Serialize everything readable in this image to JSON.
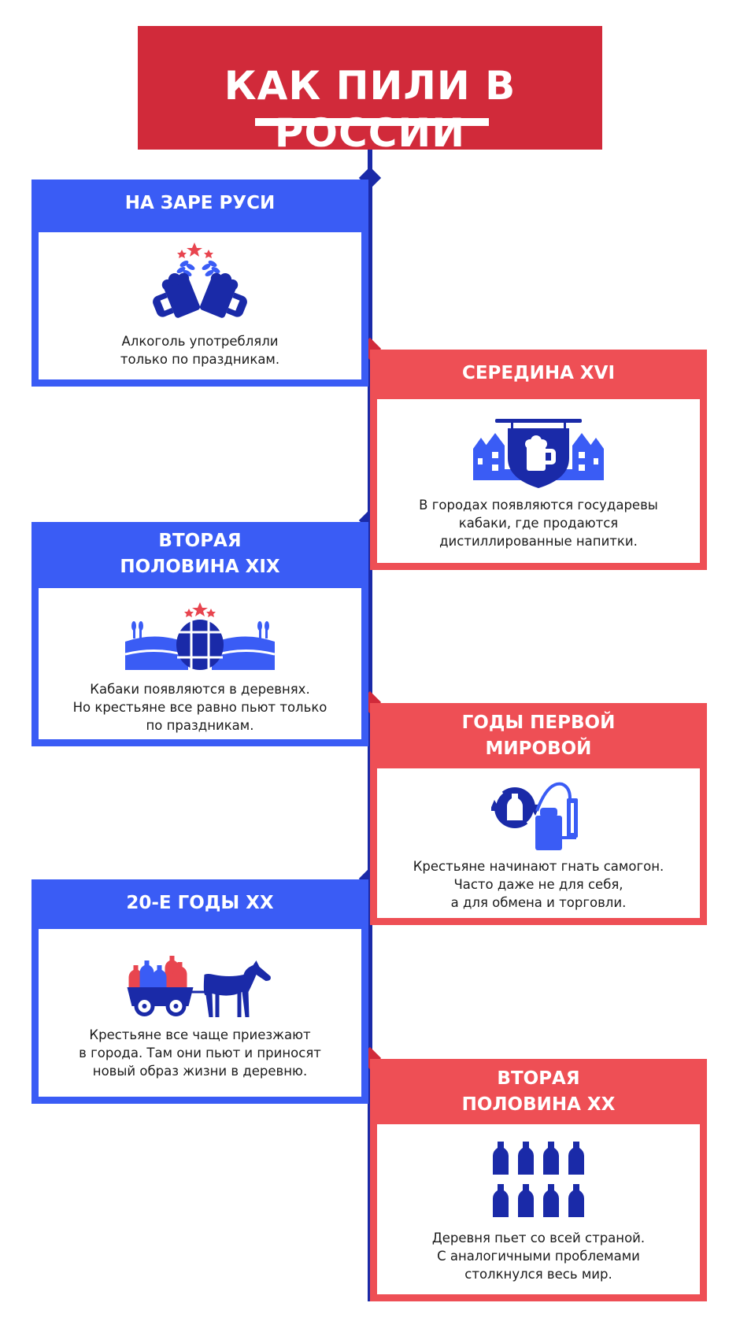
{
  "title": "КАК ПИЛИ В РОССИИ",
  "colors": {
    "red": "#d12a3a",
    "card_red": "#ee4f55",
    "blue": "#3a5cf5",
    "dark_blue": "#1a2aa8"
  },
  "cards": [
    {
      "heading": "НА ЗАРЕ РУСИ",
      "icon": "beer-mugs-icon",
      "lines": [
        "Алкоголь употребляли",
        "только по праздникам."
      ]
    },
    {
      "heading": "СЕРЕДИНА XVI",
      "icon": "tavern-sign-icon",
      "lines": [
        "В городах появляются государевы",
        "кабаки, где продаются",
        "дистиллированные напитки."
      ]
    },
    {
      "heading_lines": [
        "ВТОРАЯ",
        "ПОЛОВИНА XIX"
      ],
      "icon": "barrel-village-icon",
      "lines": [
        "Кабаки появляются в деревнях.",
        "Но крестьяне все равно пьют только",
        "по праздникам."
      ]
    },
    {
      "heading_lines": [
        "ГОДЫ ПЕРВОЙ",
        "МИРОВОЙ"
      ],
      "icon": "still-icon",
      "lines": [
        "Крестьяне начинают гнать самогон.",
        "Часто даже не для себя,",
        "а для обмена и торговли."
      ]
    },
    {
      "heading": "20-Е ГОДЫ XX",
      "icon": "horse-cart-icon",
      "lines": [
        "Крестьяне все чаще приезжают",
        "в города. Там они пьют и приносят",
        "новый образ жизни в деревню."
      ]
    },
    {
      "heading_lines": [
        "ВТОРАЯ",
        "ПОЛОВИНА XX"
      ],
      "icon": "bottles-icon",
      "lines": [
        "Деревня пьет со всей страной.",
        "С аналогичными проблемами",
        "столкнулся весь мир."
      ]
    }
  ]
}
